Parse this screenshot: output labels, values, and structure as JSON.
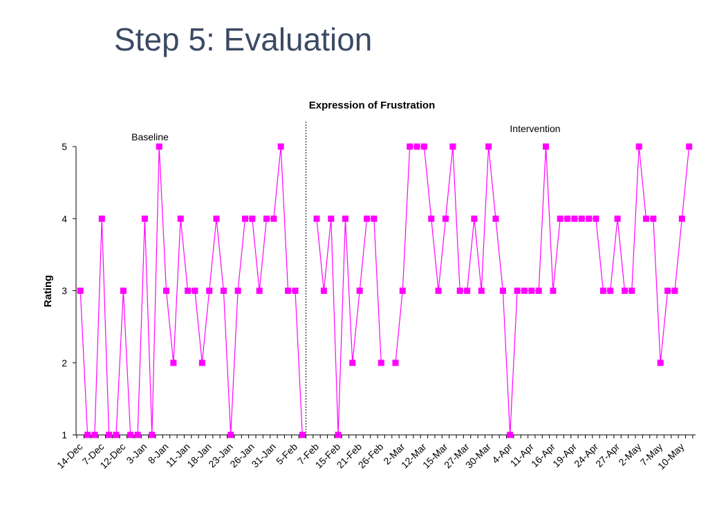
{
  "slide": {
    "title": "Step 5:  Evaluation"
  },
  "chart_data": {
    "type": "line",
    "title": "Expression of Frustration",
    "xlabel": "",
    "ylabel": "Rating",
    "ylim": [
      1,
      5
    ],
    "yticks": [
      1,
      2,
      3,
      4,
      5
    ],
    "grid": false,
    "marker": "square",
    "color": "#ff00ff",
    "phase_change_after_index": 31,
    "phase_labels": [
      "Baseline",
      "Intervention"
    ],
    "x_tick_labels": [
      "14-Dec",
      "7-Dec",
      "12-Dec",
      "3-Jan",
      "8-Jan",
      "11-Jan",
      "18-Jan",
      "23-Jan",
      "26-Jan",
      "31-Jan",
      "5-Feb",
      "7-Feb",
      "15-Feb",
      "21-Feb",
      "26-Feb",
      "2-Mar",
      "12-Mar",
      "15-Mar",
      "27-Mar",
      "30-Mar",
      "4-Apr",
      "11-Apr",
      "16-Apr",
      "19-Apr",
      "24-Apr",
      "27-Apr",
      "2-May",
      "7-May",
      "10-May"
    ],
    "series": [
      {
        "segments": [
          [
            3,
            1,
            1,
            4,
            1,
            1,
            3,
            1,
            1,
            4,
            1,
            5,
            3,
            2,
            4,
            3,
            3,
            2,
            3,
            4,
            3,
            1,
            3,
            4,
            4,
            3,
            4,
            4,
            5,
            3,
            3,
            1
          ],
          [
            4,
            3,
            4,
            1,
            4,
            2,
            3,
            4,
            4,
            2
          ],
          [
            2,
            3,
            5,
            5,
            5,
            4,
            3,
            4,
            5,
            3,
            3,
            4,
            3,
            5,
            4,
            3,
            1,
            3,
            3,
            3,
            3,
            5,
            3,
            4,
            4,
            4,
            4,
            4,
            4,
            3,
            3,
            4,
            3,
            3,
            5,
            4,
            4,
            2,
            3,
            3,
            4,
            5
          ]
        ]
      }
    ]
  }
}
